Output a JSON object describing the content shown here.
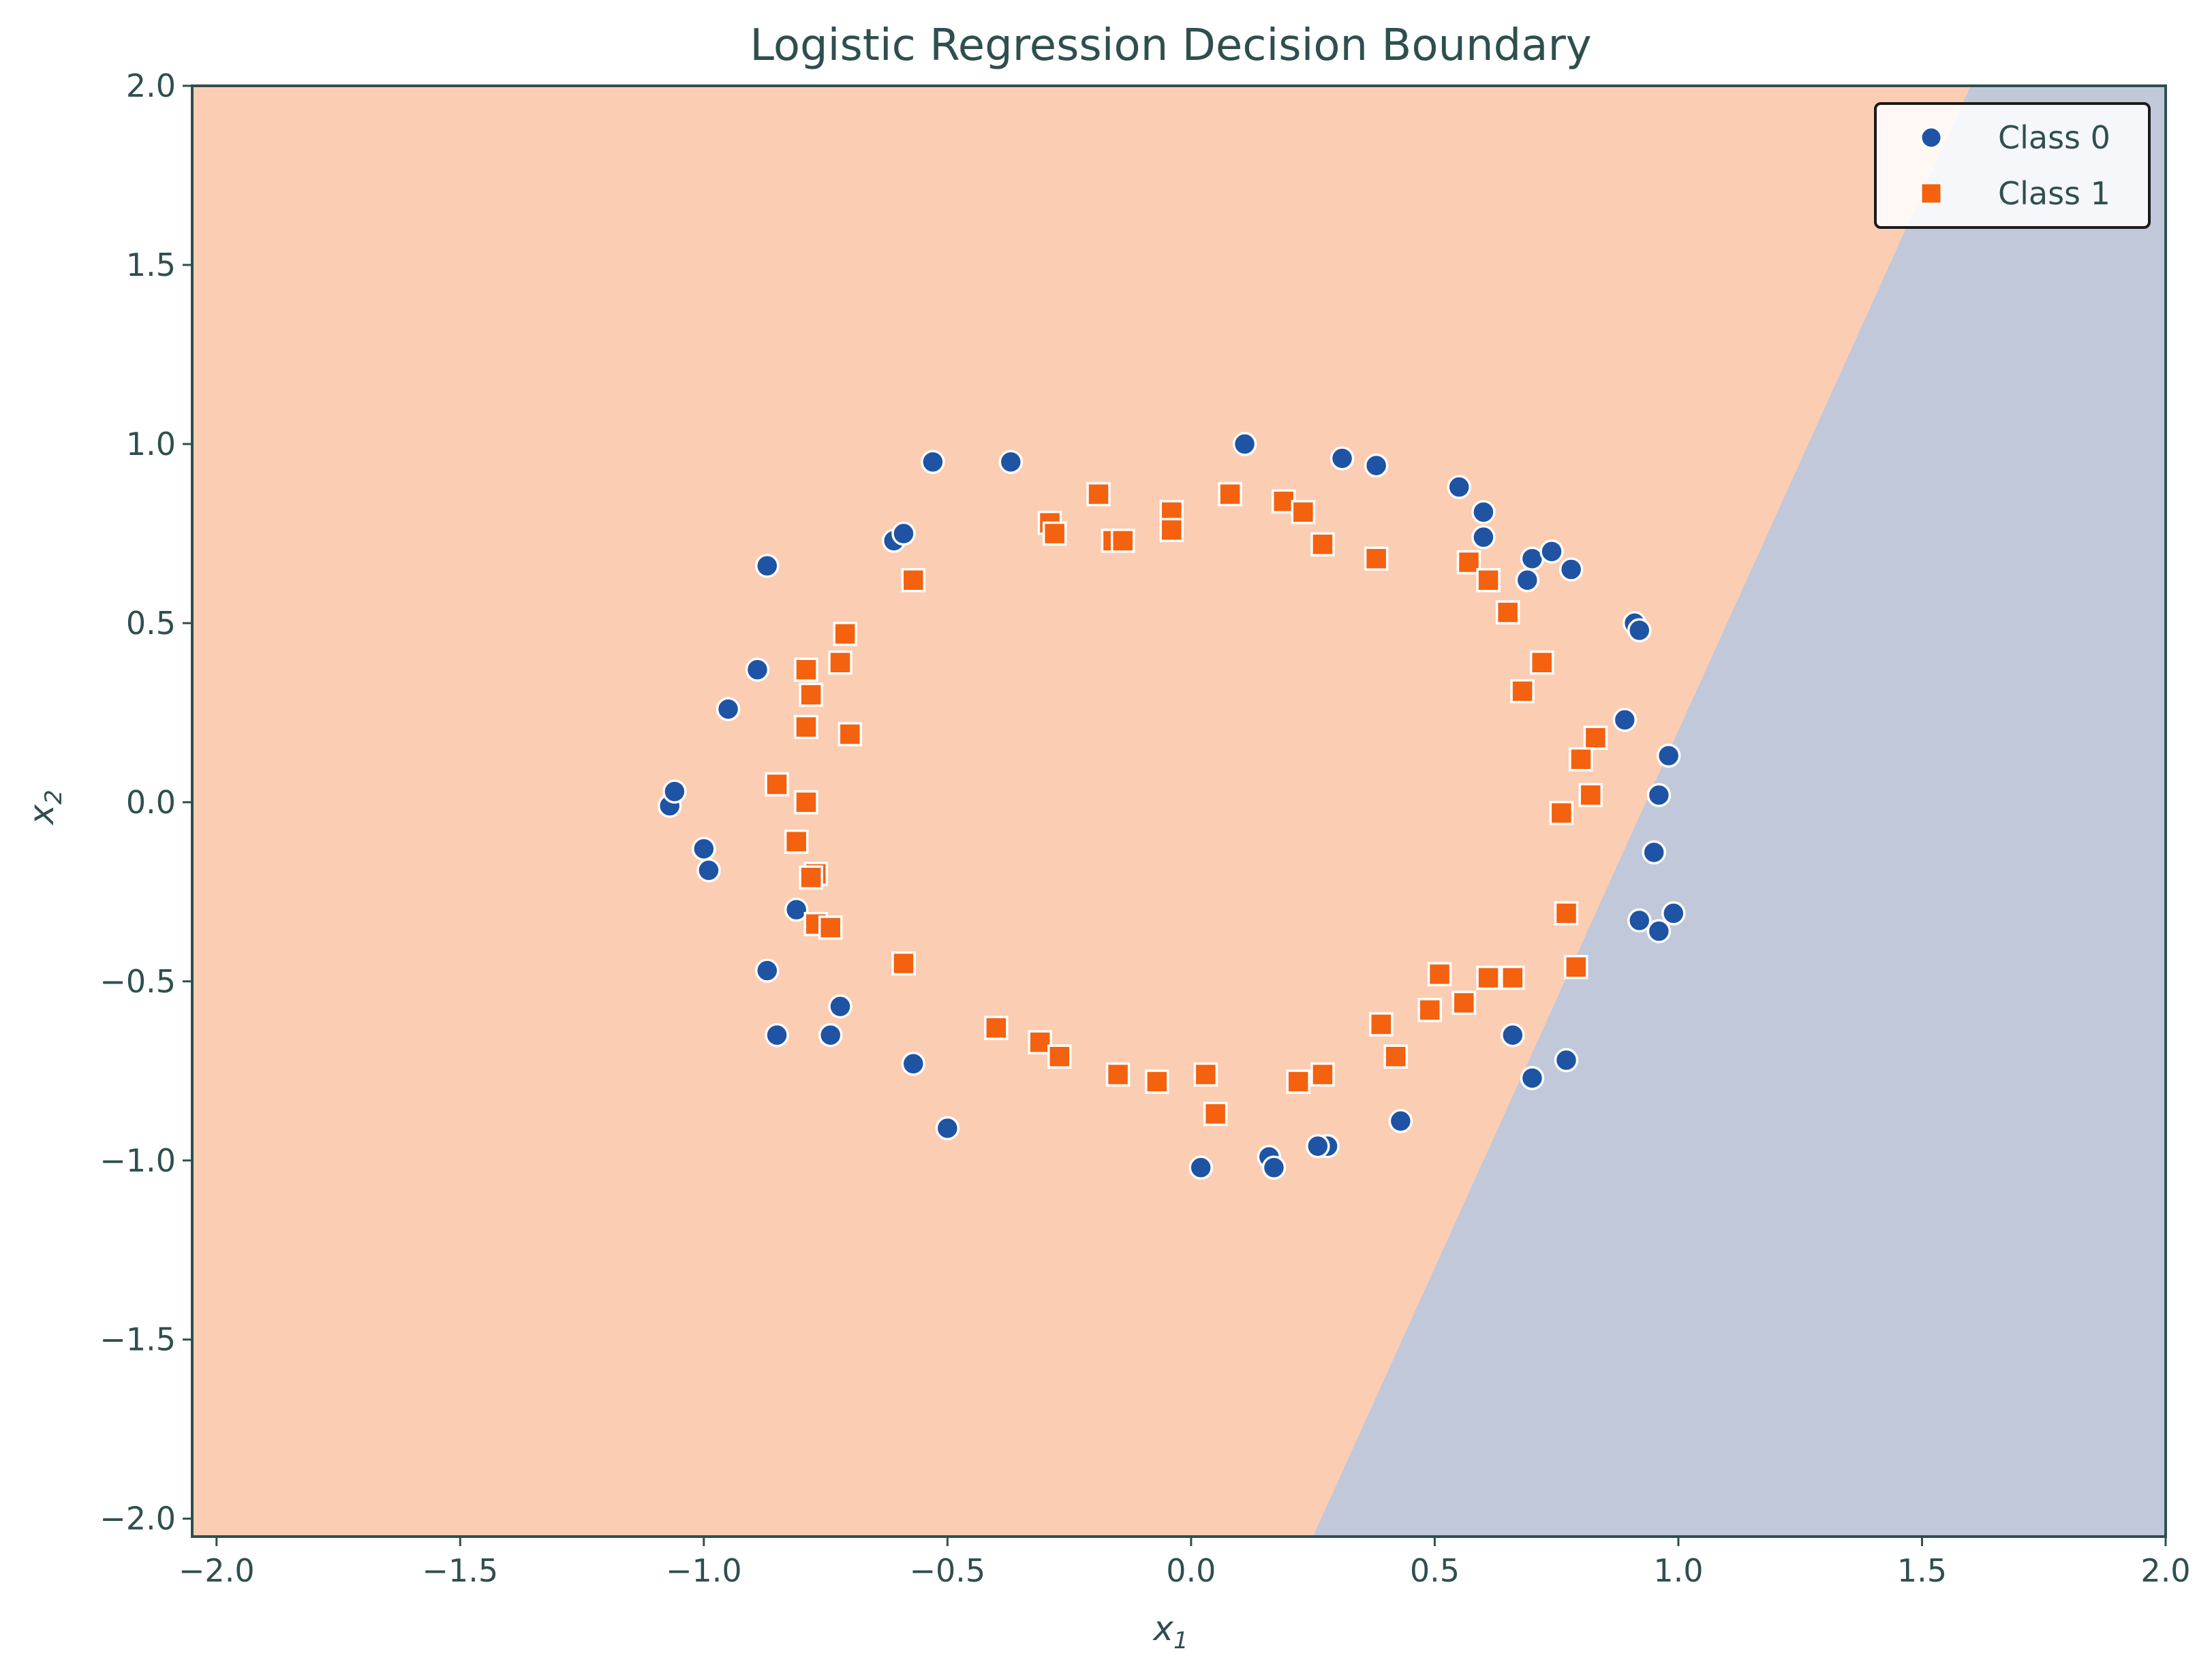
{
  "chart_data": {
    "type": "scatter",
    "title": "Logistic Regression Decision Boundary",
    "xlabel": "x1",
    "ylabel": "x2",
    "xlim": [
      -2.05,
      2.0
    ],
    "ylim": [
      -2.05,
      2.0
    ],
    "xticks": [
      -2.0,
      -1.5,
      -1.0,
      -0.5,
      0.0,
      0.5,
      1.0,
      1.5,
      2.0
    ],
    "yticks": [
      -2.0,
      -1.5,
      -1.0,
      -0.5,
      0.0,
      0.5,
      1.0,
      1.5,
      2.0
    ],
    "xtick_labels": [
      "−2.0",
      "−1.5",
      "−1.0",
      "−0.5",
      "0.0",
      "0.5",
      "1.0",
      "1.5",
      "2.0"
    ],
    "ytick_labels": [
      "−2.0",
      "−1.5",
      "−1.0",
      "−0.5",
      "0.0",
      "0.5",
      "1.0",
      "1.5",
      "2.0"
    ],
    "grid": false,
    "legend_position": "top-right",
    "decision_boundary": {
      "class0_region": "right",
      "line_points": [
        [
          0.25,
          -2.05
        ],
        [
          1.6,
          2.0
        ]
      ],
      "colors": {
        "class0_region": "#c0c8da",
        "class1_region": "#fbcdb3"
      }
    },
    "series": [
      {
        "name": "Class 0",
        "marker": "circle",
        "color": "#1f53a3",
        "points": [
          [
            0.11,
            1.0
          ],
          [
            0.31,
            0.96
          ],
          [
            0.38,
            0.94
          ],
          [
            0.55,
            0.88
          ],
          [
            0.6,
            0.81
          ],
          [
            0.6,
            0.74
          ],
          [
            0.7,
            0.68
          ],
          [
            0.74,
            0.7
          ],
          [
            0.69,
            0.62
          ],
          [
            0.78,
            0.65
          ],
          [
            0.91,
            0.5
          ],
          [
            0.92,
            0.48
          ],
          [
            0.89,
            0.23
          ],
          [
            0.98,
            0.13
          ],
          [
            0.96,
            0.02
          ],
          [
            0.95,
            -0.14
          ],
          [
            0.92,
            -0.33
          ],
          [
            0.96,
            -0.36
          ],
          [
            0.99,
            -0.31
          ],
          [
            0.66,
            -0.65
          ],
          [
            0.7,
            -0.77
          ],
          [
            0.77,
            -0.72
          ],
          [
            0.43,
            -0.89
          ],
          [
            0.28,
            -0.96
          ],
          [
            0.26,
            -0.96
          ],
          [
            0.16,
            -0.99
          ],
          [
            0.17,
            -1.02
          ],
          [
            0.02,
            -1.02
          ],
          [
            -0.5,
            -0.91
          ],
          [
            -0.57,
            -0.73
          ],
          [
            -0.74,
            -0.65
          ],
          [
            -0.85,
            -0.65
          ],
          [
            -0.72,
            -0.57
          ],
          [
            -0.87,
            -0.47
          ],
          [
            -0.81,
            -0.3
          ],
          [
            -0.99,
            -0.19
          ],
          [
            -1.0,
            -0.13
          ],
          [
            -1.07,
            -0.01
          ],
          [
            -1.06,
            0.03
          ],
          [
            -0.95,
            0.26
          ],
          [
            -0.89,
            0.37
          ],
          [
            -0.87,
            0.66
          ],
          [
            -0.61,
            0.73
          ],
          [
            -0.59,
            0.75
          ],
          [
            -0.53,
            0.95
          ],
          [
            -0.37,
            0.95
          ]
        ]
      },
      {
        "name": "Class 1",
        "marker": "square",
        "color": "#f4610f",
        "points": [
          [
            -0.19,
            0.86
          ],
          [
            -0.04,
            0.81
          ],
          [
            0.08,
            0.86
          ],
          [
            0.19,
            0.84
          ],
          [
            0.23,
            0.81
          ],
          [
            -0.29,
            0.78
          ],
          [
            -0.28,
            0.75
          ],
          [
            -0.16,
            0.73
          ],
          [
            -0.14,
            0.73
          ],
          [
            -0.04,
            0.76
          ],
          [
            0.27,
            0.72
          ],
          [
            0.38,
            0.68
          ],
          [
            -0.57,
            0.62
          ],
          [
            0.57,
            0.67
          ],
          [
            0.61,
            0.62
          ],
          [
            0.65,
            0.53
          ],
          [
            -0.71,
            0.47
          ],
          [
            0.72,
            0.39
          ],
          [
            -0.72,
            0.39
          ],
          [
            -0.79,
            0.37
          ],
          [
            0.68,
            0.31
          ],
          [
            -0.78,
            0.3
          ],
          [
            -0.79,
            0.21
          ],
          [
            -0.7,
            0.19
          ],
          [
            0.83,
            0.18
          ],
          [
            0.8,
            0.12
          ],
          [
            -0.85,
            0.05
          ],
          [
            0.82,
            0.02
          ],
          [
            -0.79,
            0.0
          ],
          [
            0.76,
            -0.03
          ],
          [
            -0.81,
            -0.11
          ],
          [
            -0.77,
            -0.2
          ],
          [
            -0.78,
            -0.21
          ],
          [
            0.77,
            -0.31
          ],
          [
            -0.77,
            -0.34
          ],
          [
            -0.74,
            -0.35
          ],
          [
            -0.59,
            -0.45
          ],
          [
            0.79,
            -0.46
          ],
          [
            0.51,
            -0.48
          ],
          [
            0.61,
            -0.49
          ],
          [
            0.66,
            -0.49
          ],
          [
            0.49,
            -0.58
          ],
          [
            0.56,
            -0.56
          ],
          [
            0.39,
            -0.62
          ],
          [
            -0.4,
            -0.63
          ],
          [
            -0.31,
            -0.67
          ],
          [
            -0.27,
            -0.71
          ],
          [
            0.42,
            -0.71
          ],
          [
            -0.15,
            -0.76
          ],
          [
            -0.07,
            -0.78
          ],
          [
            0.03,
            -0.76
          ],
          [
            0.22,
            -0.78
          ],
          [
            0.27,
            -0.76
          ],
          [
            0.05,
            -0.87
          ]
        ]
      }
    ]
  }
}
